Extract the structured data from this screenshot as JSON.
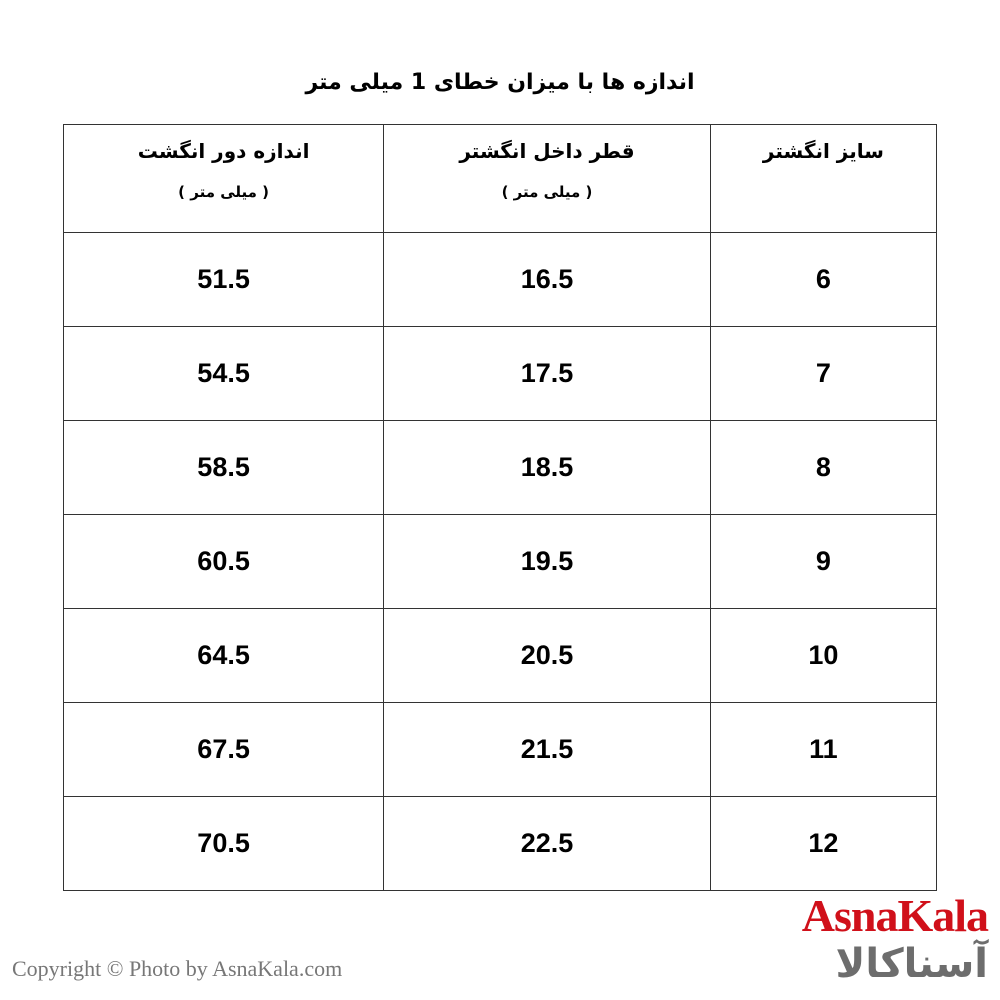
{
  "title": "اندازه ها با میزان خطای 1 میلی متر",
  "table": {
    "headers": [
      {
        "label": "سایز انگشتر",
        "unit": ""
      },
      {
        "label": "قطر داخل انگشتر",
        "unit": "( میلی متر )"
      },
      {
        "label": "اندازه دور انگشت",
        "unit": "( میلی متر )"
      }
    ],
    "rows": [
      [
        "6",
        "16.5",
        "51.5"
      ],
      [
        "7",
        "17.5",
        "54.5"
      ],
      [
        "8",
        "18.5",
        "58.5"
      ],
      [
        "9",
        "19.5",
        "60.5"
      ],
      [
        "10",
        "20.5",
        "64.5"
      ],
      [
        "11",
        "21.5",
        "67.5"
      ],
      [
        "12",
        "22.5",
        "70.5"
      ]
    ]
  },
  "logo": {
    "en": "AsnaKala",
    "fa": "آسناکالا"
  },
  "copyright": "Copyright © Photo by AsnaKala.com",
  "colors": {
    "brand_red": "#d0101a",
    "brand_gray": "#6d6d6d"
  }
}
